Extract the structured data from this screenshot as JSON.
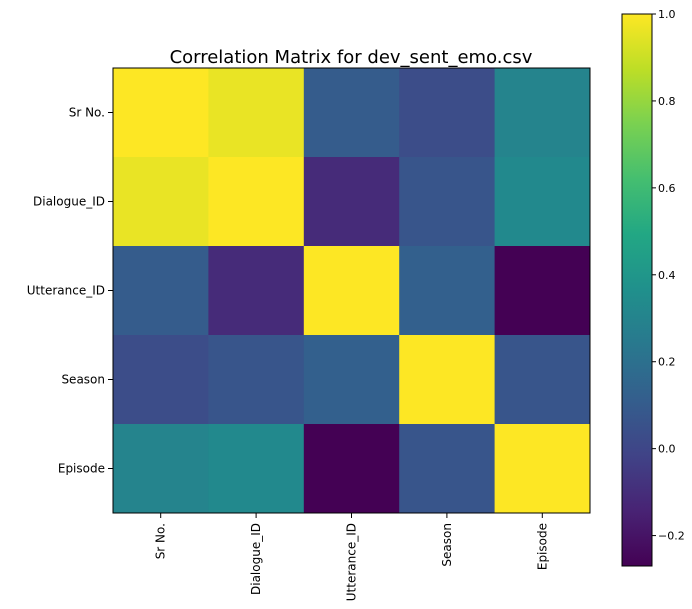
{
  "chart_data": {
    "type": "heatmap",
    "title": "Correlation Matrix for dev_sent_emo.csv",
    "xlabel": "",
    "ylabel": "",
    "x_categories": [
      "Sr No.",
      "Dialogue_ID",
      "Utterance_ID",
      "Season",
      "Episode"
    ],
    "y_categories": [
      "Sr No.",
      "Dialogue_ID",
      "Utterance_ID",
      "Season",
      "Episode"
    ],
    "matrix": [
      [
        1.0,
        0.96,
        0.1,
        0.03,
        0.3
      ],
      [
        0.96,
        1.0,
        -0.11,
        0.07,
        0.33
      ],
      [
        0.1,
        -0.11,
        1.0,
        0.12,
        -0.27
      ],
      [
        0.03,
        0.07,
        0.12,
        1.0,
        0.07
      ],
      [
        0.3,
        0.33,
        -0.27,
        0.07,
        1.0
      ]
    ],
    "colormap": "viridis",
    "colorbar": {
      "vmin": -0.27,
      "vmax": 1.0,
      "ticks": [
        -0.2,
        0.0,
        0.2,
        0.4,
        0.6,
        0.8,
        1.0
      ],
      "tick_labels": [
        "−0.2",
        "0.0",
        "0.2",
        "0.4",
        "0.6",
        "0.8",
        "1.0"
      ]
    },
    "grid": false,
    "colorbar_placement": "right"
  }
}
